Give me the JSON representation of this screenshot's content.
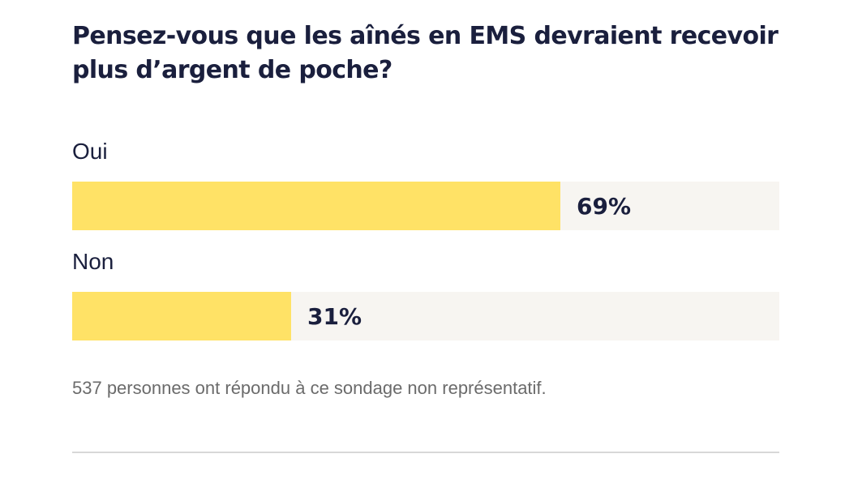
{
  "question": "Pensez-vous que les aînés en EMS devraient recevoir plus d’argent de poche?",
  "chart_data": {
    "type": "bar",
    "orientation": "horizontal",
    "categories": [
      "Oui",
      "Non"
    ],
    "values": [
      69,
      31
    ],
    "value_labels": [
      "69%",
      "31%"
    ],
    "unit": "%",
    "xlim": [
      0,
      100
    ],
    "grid": false
  },
  "colors": {
    "bar_fill": "#ffe266",
    "bar_track": "#f7f5f1",
    "text": "#1a1f3d",
    "note": "#6b6b6b"
  },
  "footnote": "537 personnes ont répondu à ce sondage non représentatif."
}
